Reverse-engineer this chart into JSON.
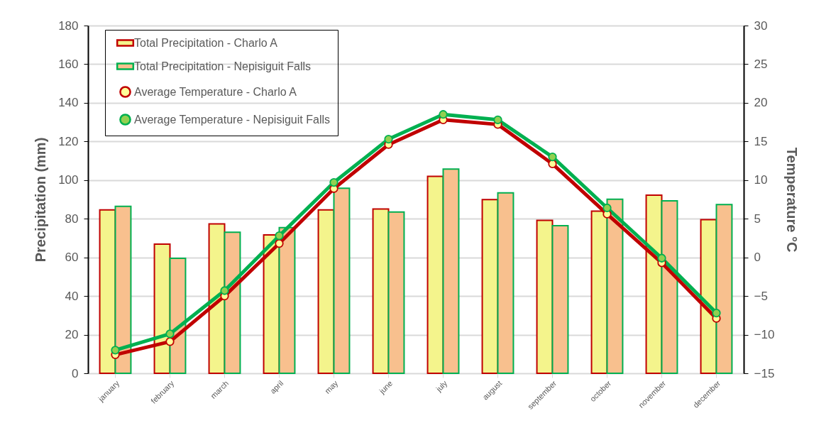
{
  "chart_data": {
    "type": "bar",
    "categories": [
      "january",
      "february",
      "march",
      "april",
      "may",
      "june",
      "july",
      "august",
      "september",
      "october",
      "november",
      "december"
    ],
    "ylabel": "Precipitation (mm)",
    "y2label": "Temperature °C",
    "ylim": [
      0,
      180
    ],
    "yticks": [
      0,
      20,
      40,
      60,
      80,
      100,
      120,
      140,
      160,
      180
    ],
    "y2lim": [
      -15,
      30
    ],
    "y2ticks": [
      -15,
      -10,
      -5,
      0,
      5,
      10,
      15,
      20,
      25,
      30
    ],
    "grid": "y",
    "legend": "top left",
    "marker": "circle",
    "line_style": "solid",
    "series": [
      {
        "name": "Total Precipitation - Charlo A",
        "color": "#f4f48c",
        "values": [
          84.6,
          66.9,
          77.3,
          71.6,
          84.6,
          85.0,
          101.9,
          89.9,
          79.2,
          83.9,
          92.2,
          79.5
        ]
      },
      {
        "name": "Total Precipitation - Nepisiguit Falls",
        "color": "#f8c08e",
        "values": [
          86.4,
          59.5,
          73.0,
          75.4,
          95.8,
          83.5,
          105.7,
          93.4,
          76.4,
          90.1,
          89.3,
          87.3
        ]
      },
      {
        "name": "Average Temperature - Charlo A",
        "type": "line",
        "axis": "y2",
        "color": "#c00000",
        "values": [
          -12.6,
          -10.9,
          -5.0,
          1.8,
          8.9,
          14.6,
          17.8,
          17.2,
          12.1,
          5.6,
          -0.7,
          -7.9
        ]
      },
      {
        "name": "Average Temperature - Nepisiguit Falls",
        "type": "line",
        "axis": "y2",
        "color": "#00b050",
        "values": [
          -12.0,
          -9.9,
          -4.3,
          2.8,
          9.7,
          15.3,
          18.5,
          17.8,
          13.0,
          6.4,
          -0.1,
          -7.2
        ]
      }
    ]
  }
}
